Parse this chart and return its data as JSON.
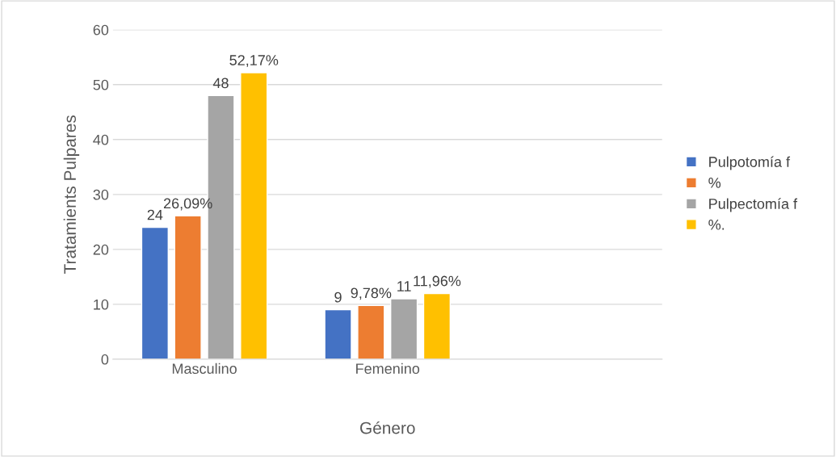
{
  "chart_data": {
    "type": "bar",
    "xlabel": "Género",
    "ylabel": "Tratamients Pulpares",
    "categories": [
      "Masculino",
      "Femenino",
      null
    ],
    "series": [
      {
        "name": "Pulpotomía f",
        "color": "#4472c4",
        "values": [
          24,
          9,
          null
        ],
        "value_labels": [
          "24",
          "9",
          null
        ]
      },
      {
        "name": "%",
        "color": "#ed7d31",
        "values": [
          26.09,
          9.78,
          null
        ],
        "value_labels": [
          "26,09%",
          "9,78%",
          null
        ]
      },
      {
        "name": "Pulpectomía f",
        "color": "#a5a5a5",
        "values": [
          48,
          11,
          null
        ],
        "value_labels": [
          "48",
          "11",
          null
        ]
      },
      {
        "name": "%.",
        "color": "#ffc000",
        "values": [
          52.17,
          11.96,
          null
        ],
        "value_labels": [
          "52,17%",
          "11,96%",
          null
        ]
      }
    ],
    "ylim": [
      0,
      60
    ],
    "yticks": [
      0,
      10,
      20,
      30,
      40,
      50,
      60
    ],
    "grid": "y",
    "legend": "right"
  }
}
